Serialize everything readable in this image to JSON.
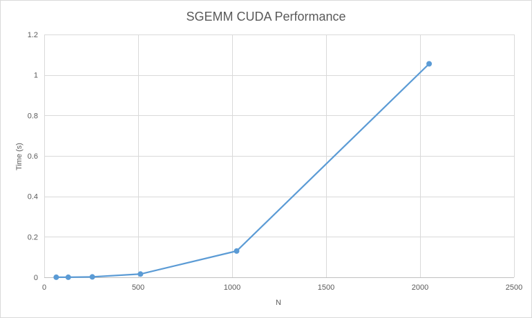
{
  "chart_data": {
    "type": "line",
    "title": "SGEMM CUDA Performance",
    "xlabel": "N",
    "ylabel": "Time (s)",
    "xlim": [
      0,
      2500
    ],
    "ylim": [
      0,
      1.2
    ],
    "x_ticks": [
      0,
      500,
      1000,
      1500,
      2000,
      2500
    ],
    "y_ticks": [
      0,
      0.2,
      0.4,
      0.6,
      0.8,
      1,
      1.2
    ],
    "x_tick_labels": [
      "0",
      "500",
      "1000",
      "1500",
      "2000",
      "2500"
    ],
    "y_tick_labels": [
      "0",
      "0.2",
      "0.4",
      "0.6",
      "0.8",
      "1",
      "1.2"
    ],
    "grid": true,
    "legend": "none",
    "series": [
      {
        "color": "#5b9bd5",
        "x": [
          64,
          128,
          256,
          512,
          1024,
          2048
        ],
        "y": [
          0.0003,
          0.0005,
          0.002,
          0.016,
          0.13,
          1.055
        ]
      }
    ]
  }
}
